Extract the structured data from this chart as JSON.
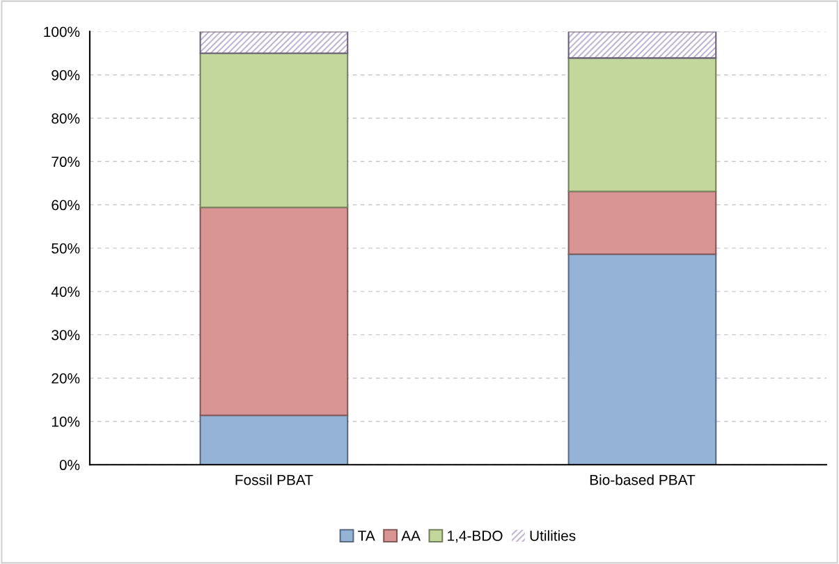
{
  "chart_data": {
    "type": "bar",
    "stacked": true,
    "categories": [
      "Fossil PBAT",
      "Bio-based PBAT"
    ],
    "series": [
      {
        "name": "TA",
        "color": "#95b3d7",
        "values": [
          11.4,
          48.6
        ]
      },
      {
        "name": "AA",
        "color": "#d99594",
        "values": [
          48.0,
          14.5
        ]
      },
      {
        "name": "1,4-BDO",
        "color": "#c3d69b",
        "values": [
          35.6,
          30.8
        ]
      },
      {
        "name": "Utilities",
        "color": "#b3a2c7",
        "values": [
          5.0,
          6.1
        ]
      }
    ],
    "ylim": [
      0,
      100
    ],
    "yticks": [
      {
        "value": 0,
        "label": "0%"
      },
      {
        "value": 10,
        "label": "10%"
      },
      {
        "value": 20,
        "label": "20%"
      },
      {
        "value": 30,
        "label": "30%"
      },
      {
        "value": 40,
        "label": "40%"
      },
      {
        "value": 50,
        "label": "50%"
      },
      {
        "value": 60,
        "label": "60%"
      },
      {
        "value": 70,
        "label": "70%"
      },
      {
        "value": 80,
        "label": "80%"
      },
      {
        "value": 90,
        "label": "90%"
      },
      {
        "value": 100,
        "label": "100%"
      }
    ],
    "grid": "y",
    "legend": "bottom"
  }
}
